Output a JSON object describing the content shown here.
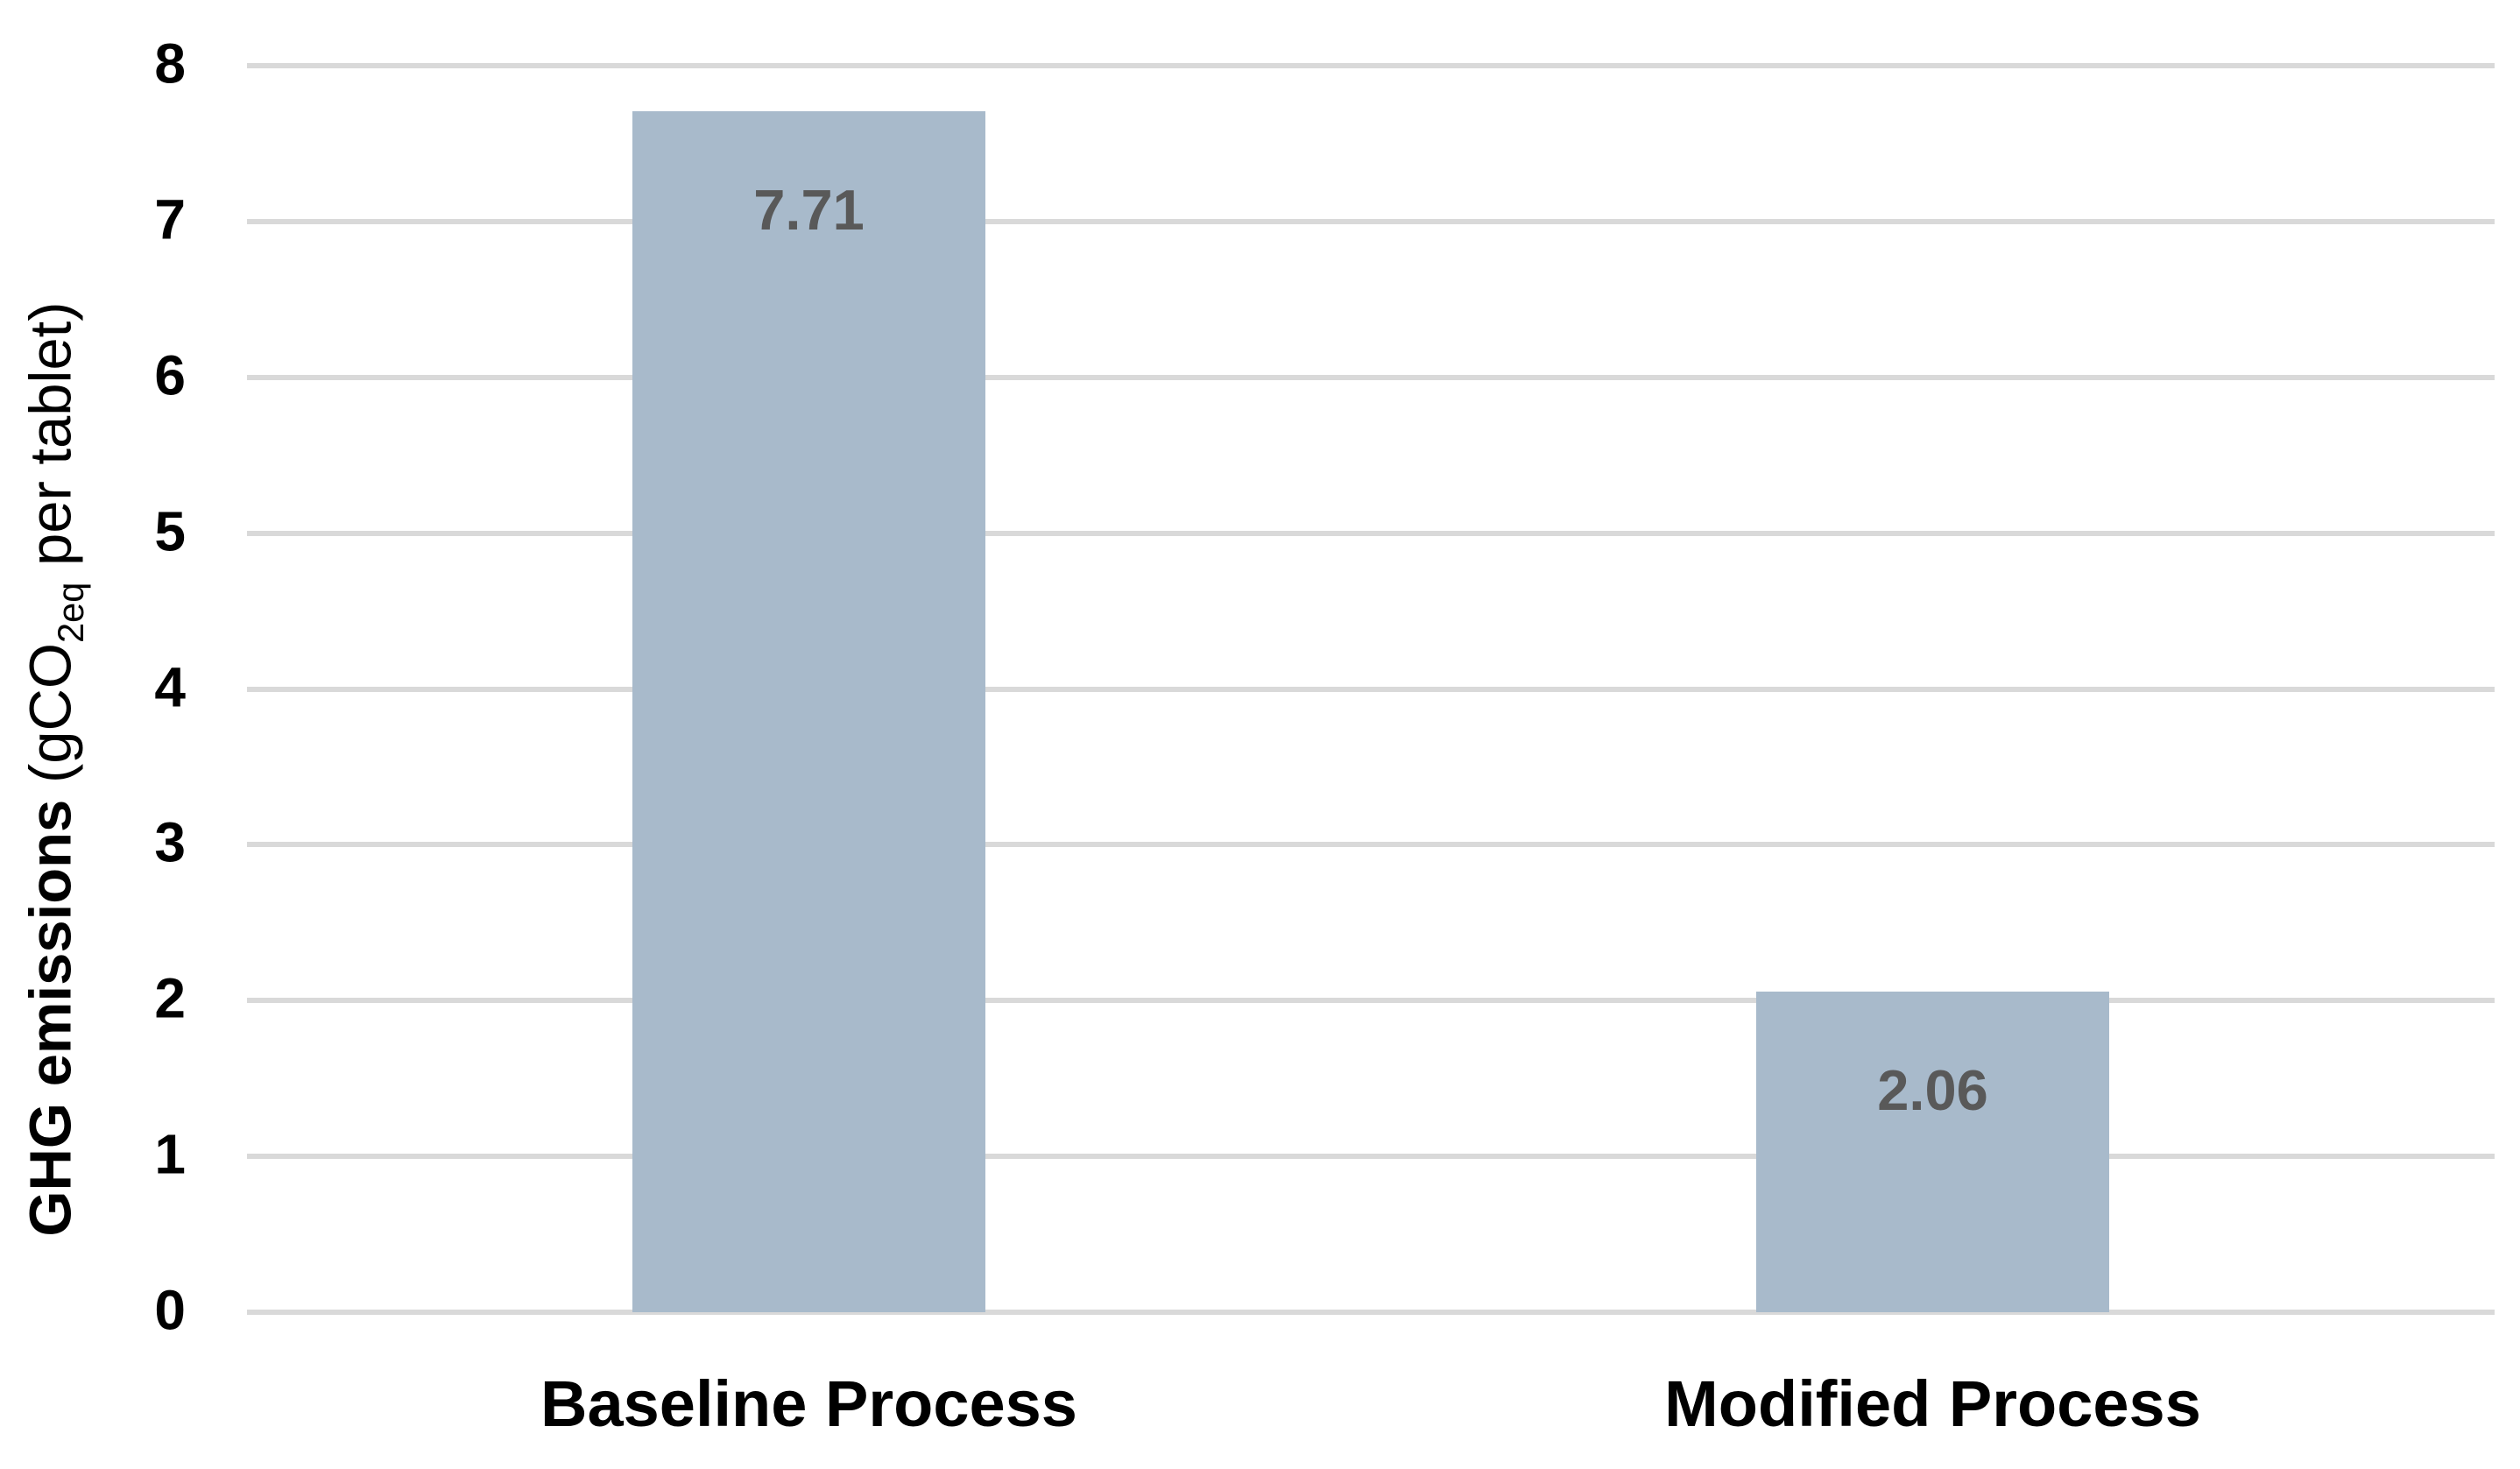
{
  "chart_data": {
    "type": "bar",
    "categories": [
      "Baseline Process",
      "Modified Process"
    ],
    "values": [
      7.71,
      2.06
    ],
    "data_labels": [
      "7.71",
      "2.06"
    ],
    "title": "",
    "xlabel": "",
    "ylabel": "GHG emissions (gCO2eq per tablet)",
    "ylabel_parts": {
      "bold": "GHG emissions",
      "pre": " (gCO",
      "sub": "2eq",
      "post": " per tablet)"
    },
    "ylim": [
      0,
      8
    ],
    "yticks": [
      0,
      1,
      2,
      3,
      4,
      5,
      6,
      7,
      8
    ],
    "grid": "horizontal",
    "legend": "none",
    "bar_color": "#a8bacb",
    "data_label_color": "#595959",
    "gridline_color": "#d9d9d9",
    "tick_label_color": "#000000"
  }
}
